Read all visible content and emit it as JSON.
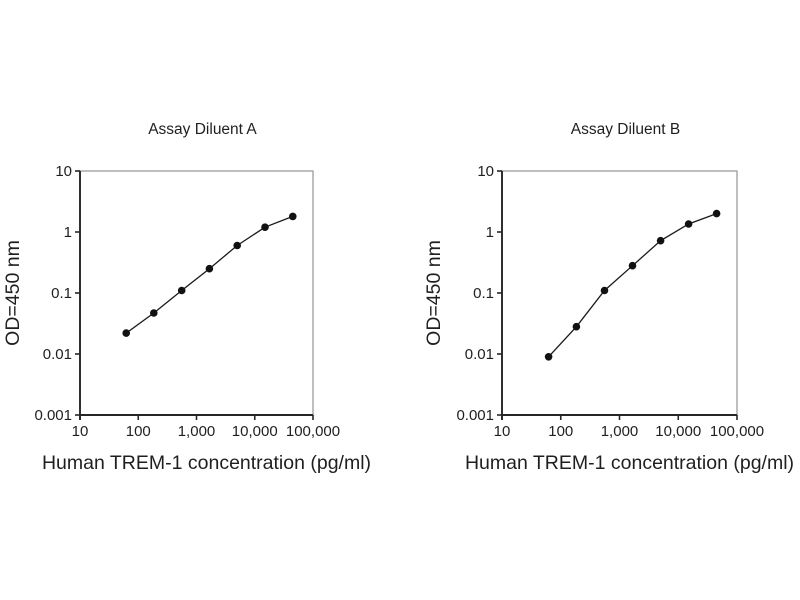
{
  "page": {
    "background": "#ffffff",
    "description": "Two ELISA standard curves for Human TREM-1 detection, side by side"
  },
  "style": {
    "background": "#ffffff",
    "text_color": "#1f1f1f",
    "axis_color": "#262626",
    "frame_color": "#a3a3a3",
    "line_color": "#1a1a1a",
    "marker_color": "#111111"
  },
  "chart_data": [
    {
      "type": "line",
      "title": "Assay Diluent A",
      "xlabel": "Human TREM-1 concentration (pg/ml)",
      "ylabel": "OD=450 nm",
      "xscale": "log",
      "yscale": "log",
      "xlim": [
        10,
        100000
      ],
      "ylim": [
        0.001,
        10
      ],
      "grid": false,
      "legend_position": "none",
      "marker": "filled-circle",
      "xticks": [
        {
          "v": 10,
          "label": "10"
        },
        {
          "v": 100,
          "label": "100"
        },
        {
          "v": 1000,
          "label": "1,000"
        },
        {
          "v": 10000,
          "label": "10,000"
        },
        {
          "v": 100000,
          "label": "100,000"
        }
      ],
      "yticks": [
        {
          "v": 10,
          "label": "10"
        },
        {
          "v": 1,
          "label": "1"
        },
        {
          "v": 0.1,
          "label": "0.1"
        },
        {
          "v": 0.01,
          "label": "0.01"
        },
        {
          "v": 0.001,
          "label": "0.001"
        }
      ],
      "x": [
        62,
        185,
        556,
        1667,
        5000,
        15000,
        45000
      ],
      "series": [
        {
          "name": "OD=450 nm",
          "values": [
            0.022,
            0.047,
            0.11,
            0.25,
            0.6,
            1.2,
            1.8
          ]
        }
      ]
    },
    {
      "type": "line",
      "title": "Assay Diluent B",
      "xlabel": "Human TREM-1 concentration (pg/ml)",
      "ylabel": "OD=450 nm",
      "xscale": "log",
      "yscale": "log",
      "xlim": [
        10,
        100000
      ],
      "ylim": [
        0.001,
        10
      ],
      "grid": false,
      "legend_position": "none",
      "marker": "filled-circle",
      "xticks": [
        {
          "v": 10,
          "label": "10"
        },
        {
          "v": 100,
          "label": "100"
        },
        {
          "v": 1000,
          "label": "1,000"
        },
        {
          "v": 10000,
          "label": "10,000"
        },
        {
          "v": 100000,
          "label": "100,000"
        }
      ],
      "yticks": [
        {
          "v": 10,
          "label": "10"
        },
        {
          "v": 1,
          "label": "1"
        },
        {
          "v": 0.1,
          "label": "0.1"
        },
        {
          "v": 0.01,
          "label": "0.01"
        },
        {
          "v": 0.001,
          "label": "0.001"
        }
      ],
      "x": [
        62,
        185,
        556,
        1667,
        5000,
        15000,
        45000
      ],
      "series": [
        {
          "name": "OD=450 nm",
          "values": [
            0.009,
            0.028,
            0.11,
            0.28,
            0.72,
            1.35,
            2.0
          ]
        }
      ]
    }
  ]
}
